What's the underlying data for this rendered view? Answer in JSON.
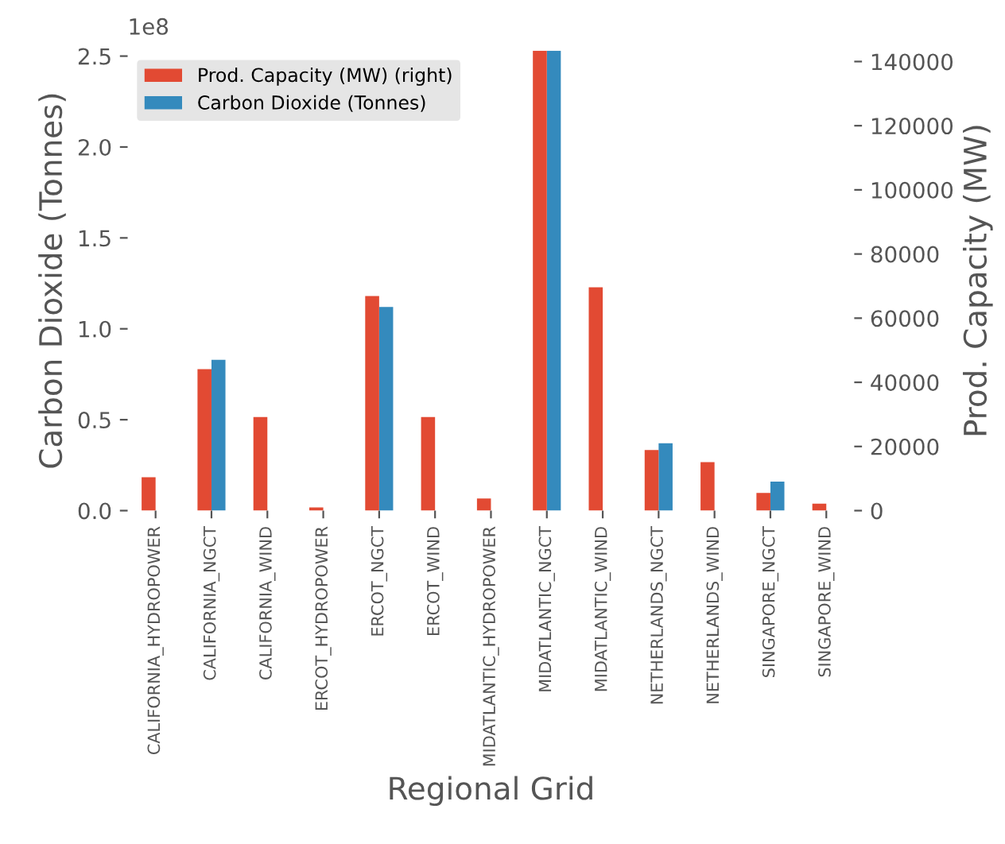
{
  "chart_data": {
    "type": "bar",
    "xlabel": "Regional Grid",
    "ylabel": "Carbon Dioxide (Tonnes)",
    "y2label": "Prod. Capacity (MW)",
    "categories": [
      "CALIFORNIA_HYDROPOWER",
      "CALIFORNIA_NGCT",
      "CALIFORNIA_WIND",
      "ERCOT_HYDROPOWER",
      "ERCOT_NGCT",
      "ERCOT_WIND",
      "MIDATLANTIC_HYDROPOWER",
      "MIDATLANTIC_NGCT",
      "MIDATLANTIC_WIND",
      "NETHERLANDS_NGCT",
      "NETHERLANDS_WIND",
      "SINGAPORE_NGCT",
      "SINGAPORE_WIND"
    ],
    "series": [
      {
        "name": "Prod. Capacity (MW) (right)",
        "color": "#e24a33",
        "axis": "y2",
        "values": [
          10400,
          44100,
          29200,
          1000,
          66900,
          29200,
          3800,
          143400,
          69600,
          18900,
          15100,
          5500,
          2200
        ]
      },
      {
        "name": "Carbon Dioxide (Tonnes)",
        "color": "#348abd",
        "values": [
          0,
          0.83,
          0,
          0,
          1.12,
          0,
          0,
          2.53,
          0,
          0.37,
          0,
          0.16,
          0
        ]
      }
    ],
    "ylim": [
      0,
      2.53
    ],
    "yticks": [
      {
        "value": 0,
        "label": "0.0"
      },
      0.5,
      {
        "value": 1,
        "label": "1.0"
      },
      1.5,
      {
        "value": 2,
        "label": "2.0"
      },
      2.5
    ],
    "y2lim": [
      0,
      143400
    ],
    "y2ticks": [
      0,
      20000,
      40000,
      60000,
      80000,
      100000,
      120000,
      140000
    ],
    "annotations": [
      "1e8"
    ],
    "legend": "top left",
    "grid": false
  }
}
